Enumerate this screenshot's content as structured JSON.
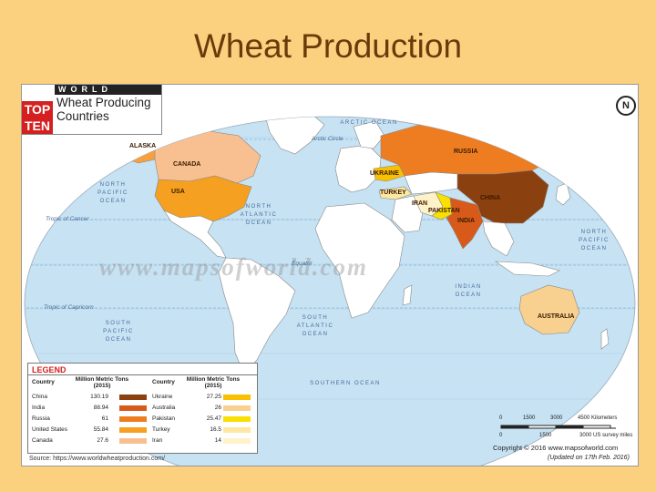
{
  "slide": {
    "title": "Wheat Production"
  },
  "map": {
    "badge": {
      "top": "TOP",
      "ten": "TEN",
      "world": "WORLD",
      "title": "Wheat Producing Countries"
    },
    "compass": "N",
    "watermark": "www.mapsofworld.com",
    "countries": {
      "alaska": "ALASKA",
      "canada": "CANADA",
      "usa": "USA",
      "russia": "RUSSIA",
      "ukraine": "UKRAINE",
      "turkey": "TURKEY",
      "iran": "IRAN",
      "pakistan": "PAKISTAN",
      "india": "INDIA",
      "china": "CHINA",
      "australia": "AUSTRALIA"
    },
    "oceans": {
      "arctic": "ARCTIC OCEAN",
      "north_pacific_left": "NORTH PACIFIC OCEAN",
      "north_atlantic": "NORTH ATLANTIC OCEAN",
      "north_pacific_right": "NORTH PACIFIC OCEAN",
      "indian": "INDIAN OCEAN",
      "south_pacific": "SOUTH PACIFIC OCEAN",
      "south_atlantic": "SOUTH ATLANTIC OCEAN",
      "southern": "SOUTHERN OCEAN"
    },
    "lines": {
      "arctic_circle": "Arctic Circle",
      "tropic_cancer": "Tropic of Cancer",
      "equator": "Equator",
      "tropic_capricorn": "Tropic of Capricorn"
    },
    "legend": {
      "title": "LEGEND",
      "col_country": "Country",
      "col_tons": "Million Metric Tons (2015)",
      "left": [
        {
          "country": "China",
          "value": "130.19",
          "color": "#8B4010"
        },
        {
          "country": "India",
          "value": "88.94",
          "color": "#D85A1A"
        },
        {
          "country": "Russia",
          "value": "61",
          "color": "#EE7D22"
        },
        {
          "country": "United States",
          "value": "55.84",
          "color": "#F5A020"
        },
        {
          "country": "Canada",
          "value": "27.6",
          "color": "#F8C090"
        }
      ],
      "right": [
        {
          "country": "Ukraine",
          "value": "27.25",
          "color": "#F8C000"
        },
        {
          "country": "Australia",
          "value": "26",
          "color": "#F8D090"
        },
        {
          "country": "Pakistan",
          "value": "25.47",
          "color": "#FAE000"
        },
        {
          "country": "Turkey",
          "value": "16.5",
          "color": "#FCE8A0"
        },
        {
          "country": "Iran",
          "value": "14",
          "color": "#FFF2C8"
        }
      ]
    },
    "source": "Source: https://www.worldwheatproduction.com/",
    "scale": {
      "km_ticks": [
        "0",
        "1500",
        "3000",
        "4500 Kilometers"
      ],
      "mi_ticks": [
        "0",
        "1500",
        "3000 US survey miles"
      ]
    },
    "copyright": "Copyright © 2016 www.mapsofworld.com",
    "updated": "(Updated on 17th Feb. 2016)"
  }
}
